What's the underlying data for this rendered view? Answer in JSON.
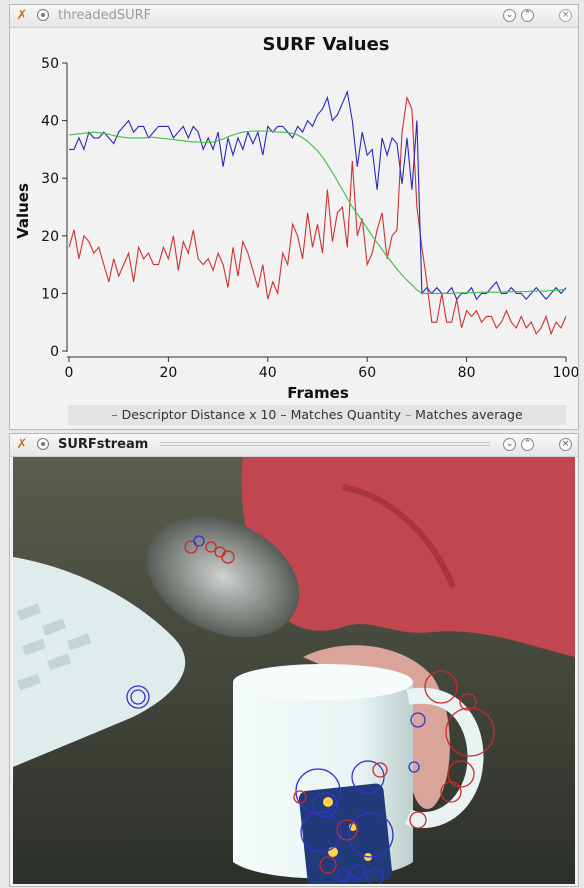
{
  "window1": {
    "title": "threadedSURF",
    "icons": [
      "x-logo-icon",
      "pin-icon",
      "minimize-icon",
      "maximize-icon",
      "close-icon"
    ]
  },
  "window2": {
    "title": "SURFstream",
    "icons": [
      "x-logo-icon",
      "pin-icon",
      "minimize-icon",
      "maximize-icon",
      "close-icon"
    ]
  },
  "chart_data": {
    "type": "line",
    "title": "SURF Values",
    "xlabel": "Frames",
    "ylabel": "Values",
    "xlim": [
      0,
      100
    ],
    "ylim": [
      0,
      50
    ],
    "xticks": [
      0,
      20,
      40,
      60,
      80,
      100
    ],
    "yticks": [
      0,
      10,
      20,
      30,
      40,
      50
    ],
    "legend_position": "bottom",
    "series": [
      {
        "name": "Descriptor Distance x 10",
        "color": "#d03030",
        "values": [
          18,
          21,
          16,
          20,
          19,
          17,
          18,
          15,
          12,
          16,
          13,
          15,
          17,
          12,
          18,
          16,
          17,
          15,
          15,
          18,
          16,
          20,
          14,
          19,
          17,
          21,
          16,
          15,
          16,
          14,
          17,
          15,
          11,
          18,
          13,
          19,
          17,
          14,
          11,
          15,
          9,
          12,
          10,
          17,
          15,
          22,
          20,
          16,
          24,
          18,
          22,
          17,
          28,
          19,
          24,
          25,
          18,
          33,
          20,
          23,
          15,
          17,
          21,
          24,
          16,
          20,
          21,
          38,
          44,
          42,
          25,
          18,
          12,
          5,
          5,
          10,
          5,
          5,
          9,
          4,
          7,
          6,
          7,
          5,
          6,
          6,
          4,
          5,
          7,
          5,
          4,
          6,
          4,
          5,
          3,
          4,
          6,
          3,
          5,
          4,
          6
        ]
      },
      {
        "name": "Matches Quantity",
        "color": "#2a2ab8",
        "values": [
          35,
          35,
          37,
          35,
          38,
          37,
          37,
          38,
          37,
          36,
          38,
          39,
          40,
          38,
          39,
          39,
          37,
          38,
          39,
          39,
          39,
          37,
          38,
          39,
          37,
          39,
          38,
          35,
          37,
          35,
          38,
          32,
          37,
          34,
          37,
          35,
          38,
          36,
          38,
          34,
          39,
          38,
          39,
          39,
          38,
          37,
          39,
          38,
          40,
          39,
          41,
          42,
          44,
          40,
          41,
          43,
          45,
          40,
          32,
          38,
          34,
          35,
          28,
          37,
          34,
          37,
          36,
          29,
          37,
          28,
          40,
          10,
          11,
          10,
          11,
          10,
          10,
          11,
          9,
          10,
          10,
          11,
          9,
          10,
          10,
          11,
          12,
          10,
          10,
          11,
          10,
          10,
          9,
          10,
          11,
          10,
          9,
          10,
          11,
          10,
          11
        ]
      },
      {
        "name": "Matches average",
        "color": "#3ac23a",
        "values": [
          37.5,
          37.6,
          37.7,
          37.8,
          37.9,
          38.0,
          37.9,
          37.8,
          37.6,
          37.4,
          37.2,
          37.1,
          37.0,
          37.0,
          37.0,
          37.0,
          37.1,
          37.1,
          37.0,
          36.9,
          36.8,
          36.7,
          36.6,
          36.5,
          36.4,
          36.3,
          36.3,
          36.2,
          36.2,
          36.3,
          36.5,
          36.8,
          37.2,
          37.5,
          37.8,
          38.0,
          38.1,
          38.2,
          38.2,
          38.2,
          38.2,
          38.1,
          38.0,
          38.0,
          37.9,
          37.8,
          37.5,
          37.0,
          36.4,
          35.6,
          34.8,
          33.7,
          32.4,
          31.0,
          29.5,
          28.0,
          26.5,
          25.0,
          23.8,
          22.6,
          21.3,
          20.0,
          18.8,
          17.6,
          16.4,
          15.3,
          14.2,
          13.2,
          12.3,
          11.5,
          10.6,
          10.0,
          10.0,
          10.0,
          10.0,
          10.0,
          10.0,
          10.0,
          10.1,
          10.1,
          10.1,
          10.1,
          10.1,
          10.2,
          10.2,
          10.2,
          10.2,
          10.2,
          10.3,
          10.3,
          10.3,
          10.3,
          10.3,
          10.4,
          10.4,
          10.4,
          10.4,
          10.5,
          10.5,
          10.6,
          10.7
        ]
      }
    ]
  }
}
